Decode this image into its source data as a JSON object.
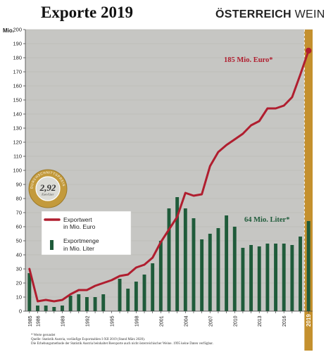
{
  "header": {
    "title": "Exporte 2019",
    "brand_strong": "ÖSTERREICH",
    "brand_light": " WEIN"
  },
  "colors": {
    "plot_background": "#c6c6c3",
    "value_line": "#b01e2f",
    "volume_bars": "#1f5b3a",
    "highlight_2019": "#c4902e",
    "medal_gold": "#c39a3c",
    "medal_inner": "#dcdcd6"
  },
  "medal": {
    "value": "2,92",
    "unit": "Euro/Liter",
    "ring_text": "DURCHSCHNITTSPREIS"
  },
  "footnotes": {
    "note1": "* Werte gerundet",
    "note2": "Quelle: Statistik Austria, vorläufige Exportzahlen I-XII 2019 (Stand März 2020).",
    "note3": "Die Erhebungsmethode der Statistik Austria beinhaltet Reexporte auch nicht österreichischer Weine. 1995 keine Daten verfügbar."
  },
  "chart_data": {
    "type": "bar",
    "ylabel": "Mio.",
    "ylim": [
      0,
      200
    ],
    "yticks": [
      0,
      10,
      20,
      30,
      40,
      50,
      60,
      70,
      80,
      90,
      100,
      110,
      120,
      130,
      140,
      150,
      160,
      170,
      180,
      190,
      200
    ],
    "x": [
      1985,
      1986,
      1987,
      1988,
      1989,
      1990,
      1991,
      1992,
      1993,
      1994,
      1995,
      1996,
      1997,
      1998,
      1999,
      2000,
      2001,
      2002,
      2003,
      2004,
      2005,
      2006,
      2007,
      2008,
      2009,
      2010,
      2011,
      2012,
      2013,
      2014,
      2015,
      2016,
      2017,
      2018,
      2019
    ],
    "xtick_labels": [
      "1985",
      "1986",
      "1989",
      "1992",
      "1995",
      "1998",
      "2001",
      "2004",
      "2007",
      "2010",
      "2013",
      "2016",
      "2019"
    ],
    "series": [
      {
        "name": "Exportwert in Mio. Euro",
        "type": "line",
        "values": [
          30,
          7,
          8,
          7,
          8,
          12,
          15,
          15,
          18,
          20,
          22,
          25,
          26,
          31,
          33,
          38,
          49,
          58,
          67,
          84,
          82,
          83,
          103,
          113,
          118,
          122,
          126,
          132,
          135,
          144,
          144,
          146,
          152,
          168,
          185
        ]
      },
      {
        "name": "Exportmenge in Mio. Liter",
        "type": "bar",
        "values": [
          27,
          4,
          4,
          3,
          4,
          11,
          12,
          10,
          10,
          12,
          null,
          23,
          16,
          21,
          26,
          34,
          50,
          73,
          81,
          73,
          66,
          51,
          55,
          59,
          68,
          60,
          45,
          47,
          46,
          48,
          48,
          48,
          47,
          53,
          64
        ]
      }
    ],
    "legend": {
      "placement": "left-middle",
      "value_label": "Exportwert in Mio. Euro",
      "volume_label": "Exportmenge in Mio. Liter"
    },
    "annotations": {
      "value_2019": "185 Mio. Euro*",
      "volume_2019": "64 Mio. Liter*"
    }
  }
}
